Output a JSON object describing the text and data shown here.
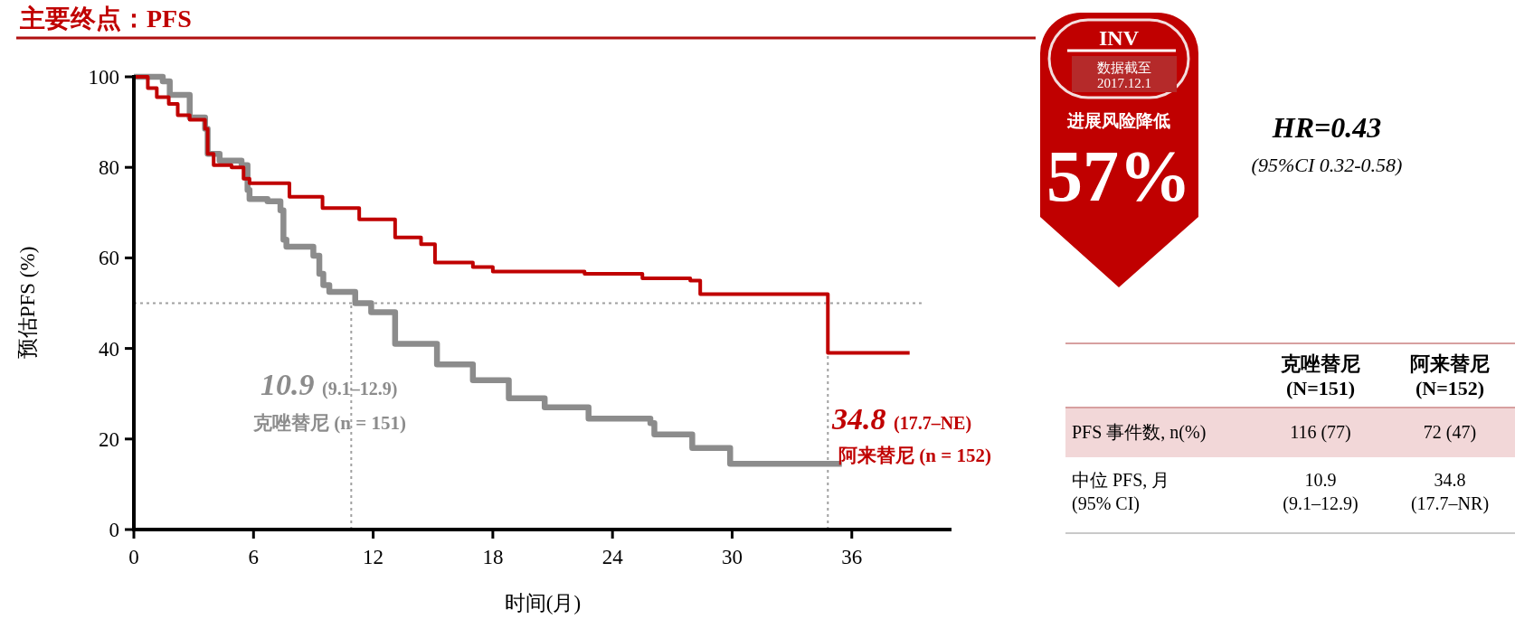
{
  "chart_data": {
    "type": "step",
    "title": "主要终点：PFS",
    "xlabel": "时间(月)",
    "ylabel": "预估PFS (%)",
    "xlim": [
      0,
      41
    ],
    "xticks": [
      0,
      6,
      12,
      18,
      24,
      30,
      36
    ],
    "ylim": [
      0,
      100
    ],
    "yticks": [
      0,
      20,
      40,
      60,
      80,
      100
    ],
    "grid": false,
    "line_style": "solid",
    "series": [
      {
        "name": "克唑替尼 (n = 151)",
        "color": "#8c8c8c",
        "x": [
          0,
          0.7,
          1.45,
          1.8,
          2.8,
          3.57,
          3.7,
          4.3,
          5.4,
          5.7,
          5.8,
          6.7,
          7.35,
          7.5,
          7.65,
          9.0,
          9.3,
          9.5,
          9.8,
          11.1,
          11.9,
          13.1,
          15.2,
          17.0,
          18.8,
          20.6,
          22.8,
          25.9,
          26.1,
          28.0,
          29.9,
          35.5
        ],
        "values": [
          100,
          100,
          99,
          96,
          91,
          88.5,
          83,
          81.5,
          80.5,
          75,
          73,
          72.5,
          70.5,
          64,
          62.5,
          60.5,
          56.5,
          54,
          52.5,
          50,
          48,
          41,
          36.5,
          33,
          29,
          27,
          24.5,
          23.5,
          21,
          18,
          14.5,
          14.5
        ]
      },
      {
        "name": "阿来替尼 (n = 152)",
        "color": "#c00000",
        "x": [
          0,
          0.7,
          1.15,
          1.75,
          2.2,
          2.8,
          3.57,
          3.7,
          4.0,
          4.9,
          5.5,
          5.8,
          7.8,
          9.46,
          11.3,
          13.1,
          14.4,
          15.1,
          17.0,
          18.0,
          22.6,
          25.5,
          27.9,
          28.4,
          34.8,
          38.9
        ],
        "values": [
          100,
          97.5,
          95.5,
          94,
          91.5,
          90.5,
          88.5,
          83,
          80.5,
          80,
          77.5,
          76.5,
          73.5,
          71,
          68.5,
          64.5,
          63,
          59,
          58,
          57,
          56.5,
          55.5,
          55,
          52,
          39,
          39
        ]
      }
    ],
    "ref_lines": [
      {
        "axis": "y",
        "value": 50,
        "color": "#a0a0a0",
        "line_style": "dotted"
      },
      {
        "axis": "x",
        "value": 10.9,
        "color": "#a0a0a0",
        "line_style": "dotted"
      },
      {
        "axis": "x",
        "value": 34.8,
        "color": "#a0a0a0",
        "line_style": "dotted"
      }
    ],
    "annotations": [
      "10.9 (9.1–12.9)",
      "34.8 (17.7–NE)",
      "HR=0.43",
      "(95%CI 0.32-0.58)",
      "INV",
      "数据截至",
      "2017.12.1",
      "进展风险降低",
      "57%",
      "克唑替尼",
      "(N=151)",
      "阿来替尼",
      "(N=152)",
      "PFS 事件数, n(%)",
      "116 (77)",
      "72 (47)",
      "中位 PFS, 月",
      "(95% CI)",
      "10.9",
      "(9.1–12.9)",
      "34.8",
      "(17.7–NR)"
    ]
  }
}
